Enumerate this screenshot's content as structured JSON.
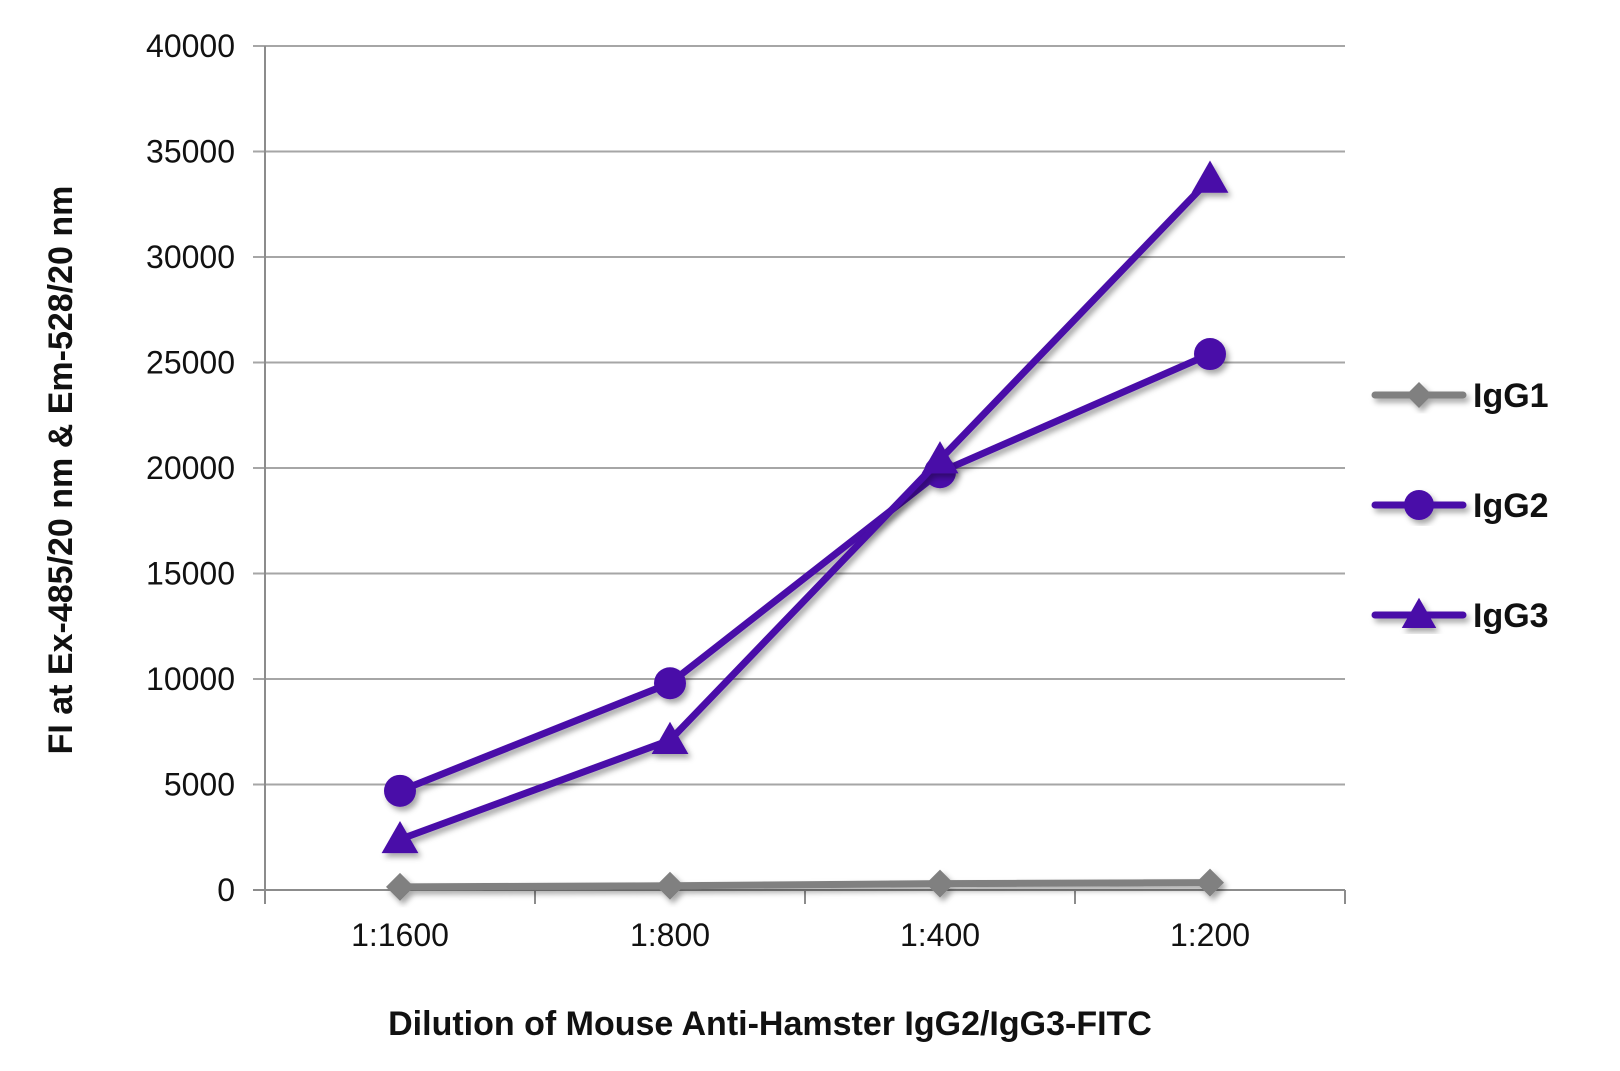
{
  "chart_data": {
    "type": "line",
    "categories": [
      "1:1600",
      "1:800",
      "1:400",
      "1:200"
    ],
    "series": [
      {
        "name": "IgG1",
        "values": [
          150,
          200,
          300,
          350
        ],
        "color": "#808080",
        "marker": "diamond"
      },
      {
        "name": "IgG2",
        "values": [
          4700,
          9800,
          19800,
          25400
        ],
        "color": "#4a0ca8",
        "marker": "circle"
      },
      {
        "name": "IgG3",
        "values": [
          2400,
          7100,
          20400,
          33700
        ],
        "color": "#4a0ca8",
        "marker": "triangle"
      }
    ],
    "xlabel": "Dilution of Mouse Anti-Hamster IgG2/IgG3-FITC",
    "ylabel": "FI at Ex-485/20 nm & Em-528/20 nm",
    "ylim": [
      0,
      40000
    ],
    "yticks": [
      "0",
      "5000",
      "10000",
      "15000",
      "20000",
      "25000",
      "30000",
      "35000",
      "40000"
    ],
    "grid": true,
    "legend": "right"
  }
}
